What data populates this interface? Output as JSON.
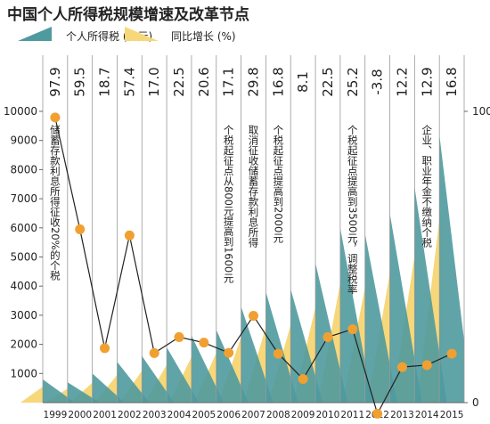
{
  "chart_data": {
    "type": "combo",
    "title": "中国个人所得税规模增速及改革节点",
    "categories": [
      "1999",
      "2000",
      "2001",
      "2002",
      "2003",
      "2004",
      "2005",
      "2006",
      "2007",
      "2008",
      "2009",
      "2010",
      "2011",
      "2012",
      "2013",
      "2014",
      "2015"
    ],
    "series": [
      {
        "name": "个人所得税 (亿元)",
        "color": "#4f9a9e",
        "shade": "#f6d77a",
        "values": [
          800,
          700,
          1000,
          1400,
          1600,
          1900,
          2300,
          2500,
          3300,
          3800,
          3900,
          4800,
          6000,
          5800,
          6500,
          7400,
          9200
        ]
      },
      {
        "name": "同比增长 (%)",
        "color": "#f0a030",
        "axis": "y2",
        "values": [
          97.9,
          59.5,
          18.7,
          57.4,
          17.0,
          22.5,
          20.6,
          17.1,
          29.8,
          16.8,
          8.1,
          22.5,
          25.2,
          -3.8,
          12.2,
          12.9,
          16.8
        ],
        "value_labels": [
          "97.9",
          "59.5",
          "18.7",
          "57.4",
          "17.0",
          "22.5",
          "20.6",
          "17.1",
          "29.8",
          "16.8",
          "8.1",
          "22.5",
          "25.2",
          "-3.8",
          "12.2",
          "12.9",
          "16.8"
        ]
      }
    ],
    "ylim": [
      0,
      10000
    ],
    "yticks": [
      1000,
      2000,
      3000,
      4000,
      5000,
      6000,
      7000,
      8000,
      9000,
      10000
    ],
    "y2lim": [
      0,
      100
    ],
    "y2ticks": [
      0,
      100
    ],
    "annotations": [
      {
        "x": "1999",
        "text": "储蓄存款利息所得征收20%的个税"
      },
      {
        "x": "2006",
        "text": "个税起征点从800元提高到1600元"
      },
      {
        "x": "2007",
        "text": "取消征收储蓄存款利息所得"
      },
      {
        "x": "2008",
        "text": "个税起征点提高到2000元"
      },
      {
        "x": "2011",
        "text": "个税起征点提高到3500元，调整税率"
      },
      {
        "x": "2014",
        "text": "企业、职业年金不缴纳个税"
      }
    ]
  }
}
